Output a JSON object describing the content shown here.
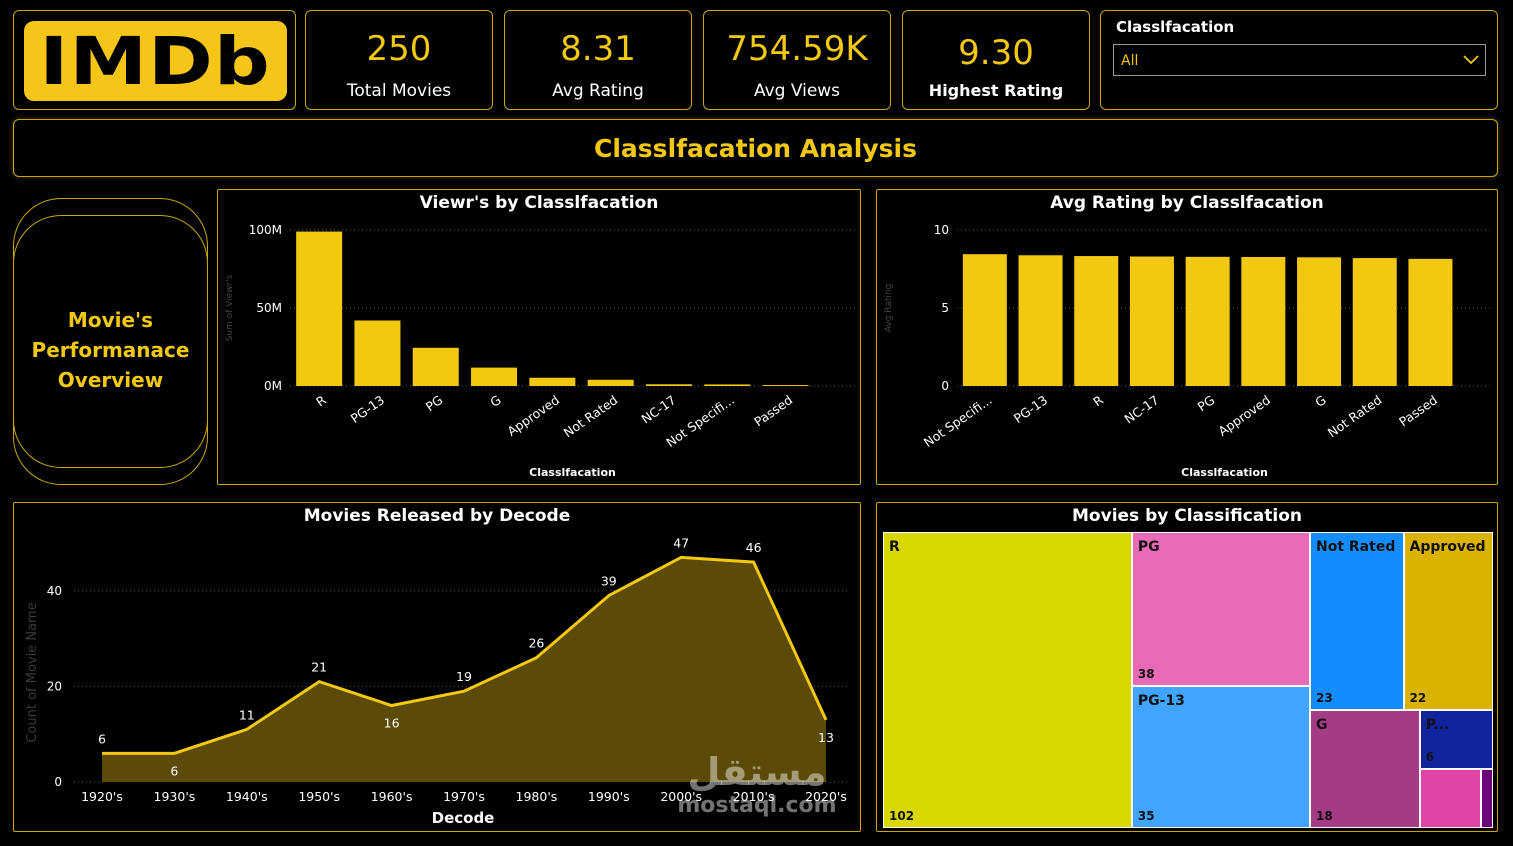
{
  "logo": {
    "text": "IMDb"
  },
  "kpis": [
    {
      "value": "250",
      "label": "Total Movies"
    },
    {
      "value": "8.31",
      "label": "Avg Rating"
    },
    {
      "value": "754.59K",
      "label": "Avg Views"
    },
    {
      "value": "9.30",
      "label": "Highest Rating"
    }
  ],
  "filter": {
    "label": "Classlfacation",
    "selected": "All"
  },
  "banner": {
    "title": "Classlfacation Analysis"
  },
  "side_card": {
    "title": "Movie's Performanace Overview"
  },
  "watermark": {
    "arabic": "مستقل",
    "latin": "mostaql.com"
  },
  "colors": {
    "accent": "#f2c811",
    "border": "#c9a608",
    "bar": "#f2c811",
    "area": "#5c4a08"
  },
  "chart_data": [
    {
      "id": "views",
      "type": "bar",
      "title": "Viewr's by Classlfacation",
      "xlabel": "Classlfacation",
      "ylabel": "Sum of Viewr's",
      "ylim": [
        0,
        100000000
      ],
      "yticks": [
        0,
        50000000,
        100000000
      ],
      "ytick_labels": [
        "0M",
        "50M",
        "100M"
      ],
      "categories": [
        "R",
        "PG-13",
        "PG",
        "G",
        "Approved",
        "Not Rated",
        "NC-17",
        "Not Specifi...",
        "Passed"
      ],
      "values": [
        99000000,
        42000000,
        24500000,
        11800000,
        5300000,
        4000000,
        1100000,
        1000000,
        600000
      ]
    },
    {
      "id": "rating",
      "type": "bar",
      "title": "Avg Rating by Classlfacation",
      "xlabel": "Classlfacation",
      "ylabel": "Avg Rating",
      "ylim": [
        0,
        10
      ],
      "yticks": [
        0,
        5,
        10
      ],
      "ytick_labels": [
        "0",
        "5",
        "10"
      ],
      "categories": [
        "Not Specifi...",
        "PG-13",
        "R",
        "NC-17",
        "PG",
        "Approved",
        "G",
        "Not Rated",
        "Passed"
      ],
      "values": [
        8.45,
        8.38,
        8.33,
        8.3,
        8.28,
        8.27,
        8.25,
        8.2,
        8.15
      ]
    },
    {
      "id": "decade",
      "type": "area",
      "title": "Movies Released by Decode",
      "xlabel": "Decode",
      "ylabel": "Count of Movie Name",
      "ylim": [
        0,
        50
      ],
      "yticks": [
        0,
        20,
        40
      ],
      "ytick_labels": [
        "0",
        "20",
        "40"
      ],
      "categories": [
        "1920's",
        "1930's",
        "1940's",
        "1950's",
        "1960's",
        "1970's",
        "1980's",
        "1990's",
        "2000's",
        "2010's",
        "2020's"
      ],
      "values": [
        6,
        6,
        11,
        21,
        16,
        19,
        26,
        39,
        47,
        46,
        13
      ],
      "value_labels": [
        "6",
        "6",
        "11",
        "21",
        "16",
        "19",
        "26",
        "39",
        "47",
        "46",
        "13"
      ]
    },
    {
      "id": "treemap",
      "type": "treemap",
      "title": "Movies by Classification",
      "items": [
        {
          "name": "R",
          "value": 102,
          "label": "102",
          "color": "#d8d800"
        },
        {
          "name": "PG",
          "value": 38,
          "label": "38",
          "color": "#e96ab8"
        },
        {
          "name": "PG-13",
          "value": 35,
          "label": "35",
          "color": "#41a4ff"
        },
        {
          "name": "Not Rated",
          "value": 23,
          "label": "23",
          "color": "#118dff"
        },
        {
          "name": "Approved",
          "value": 22,
          "label": "22",
          "color": "#d9b300"
        },
        {
          "name": "G",
          "value": 18,
          "label": "18",
          "color": "#a43b86"
        },
        {
          "name": "P...",
          "value": 6,
          "label": "6",
          "color": "#12239e"
        },
        {
          "name": "",
          "value": 5,
          "label": "",
          "color": "#e044a7"
        },
        {
          "name": "",
          "value": 1,
          "label": "",
          "color": "#6b007b"
        }
      ]
    }
  ]
}
